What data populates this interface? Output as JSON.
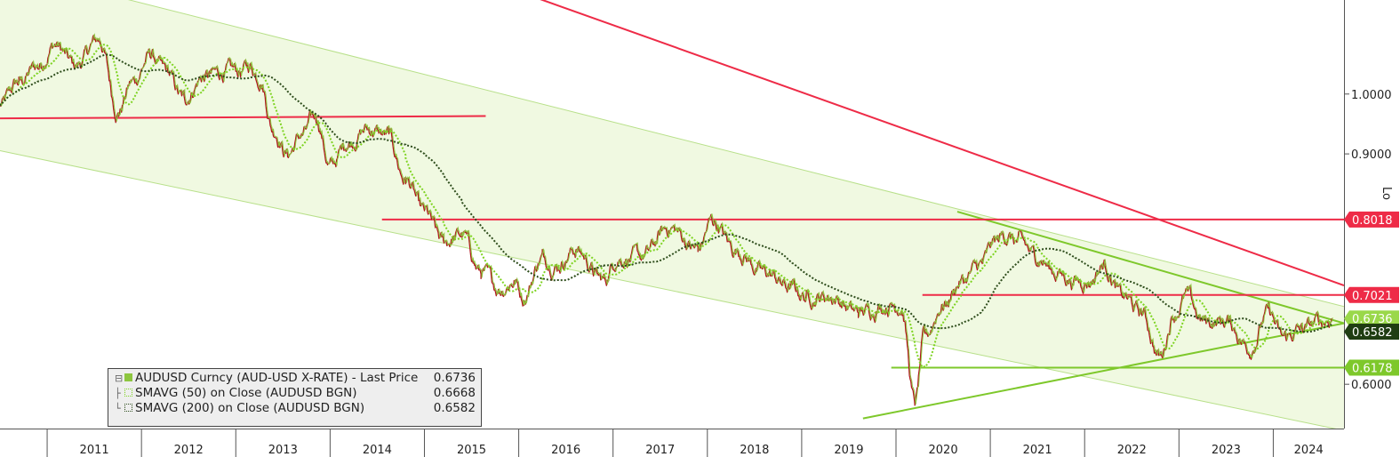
{
  "chart_data": {
    "type": "line",
    "title": "",
    "xlabel": "",
    "ylabel": "",
    "y_scale": "log",
    "x_range": [
      2010.5,
      2024.75
    ],
    "ylim": [
      0.555,
      1.18
    ],
    "y_ticks": [
      "1.0000",
      "0.9000",
      "0.6000"
    ],
    "x_tick_labels": [
      "2011",
      "2012",
      "2013",
      "2014",
      "2015",
      "2016",
      "2017",
      "2018",
      "2019",
      "2020",
      "2021",
      "2022",
      "2023",
      "2024"
    ],
    "axis_side_label": "Lo",
    "price_anchors": [
      [
        2010.5,
        0.98
      ],
      [
        2010.7,
        1.02
      ],
      [
        2010.9,
        1.05
      ],
      [
        2011.08,
        1.09
      ],
      [
        2011.3,
        1.05
      ],
      [
        2011.55,
        1.1
      ],
      [
        2011.75,
        0.97
      ],
      [
        2011.9,
        1.02
      ],
      [
        2012.1,
        1.07
      ],
      [
        2012.25,
        1.04
      ],
      [
        2012.45,
        0.99
      ],
      [
        2012.65,
        1.03
      ],
      [
        2012.9,
        1.04
      ],
      [
        2013.05,
        1.04
      ],
      [
        2013.15,
        1.05
      ],
      [
        2013.25,
        1.03
      ],
      [
        2013.4,
        0.94
      ],
      [
        2013.55,
        0.9
      ],
      [
        2013.7,
        0.93
      ],
      [
        2013.85,
        0.96
      ],
      [
        2014.0,
        0.88
      ],
      [
        2014.2,
        0.92
      ],
      [
        2014.4,
        0.94
      ],
      [
        2014.6,
        0.93
      ],
      [
        2014.8,
        0.86
      ],
      [
        2015.0,
        0.81
      ],
      [
        2015.2,
        0.77
      ],
      [
        2015.4,
        0.78
      ],
      [
        2015.6,
        0.73
      ],
      [
        2015.8,
        0.71
      ],
      [
        2015.95,
        0.72
      ],
      [
        2016.05,
        0.7
      ],
      [
        2016.25,
        0.75
      ],
      [
        2016.4,
        0.74
      ],
      [
        2016.6,
        0.76
      ],
      [
        2016.9,
        0.72
      ],
      [
        2017.05,
        0.75
      ],
      [
        2017.3,
        0.75
      ],
      [
        2017.6,
        0.79
      ],
      [
        2017.9,
        0.76
      ],
      [
        2018.05,
        0.8
      ],
      [
        2018.3,
        0.76
      ],
      [
        2018.6,
        0.73
      ],
      [
        2018.9,
        0.71
      ],
      [
        2019.05,
        0.7
      ],
      [
        2019.3,
        0.7
      ],
      [
        2019.6,
        0.68
      ],
      [
        2019.9,
        0.69
      ],
      [
        2020.05,
        0.69
      ],
      [
        2020.2,
        0.58
      ],
      [
        2020.3,
        0.65
      ],
      [
        2020.5,
        0.69
      ],
      [
        2020.7,
        0.72
      ],
      [
        2020.9,
        0.74
      ],
      [
        2021.05,
        0.77
      ],
      [
        2021.15,
        0.78
      ],
      [
        2021.3,
        0.77
      ],
      [
        2021.5,
        0.75
      ],
      [
        2021.7,
        0.73
      ],
      [
        2021.9,
        0.72
      ],
      [
        2022.05,
        0.72
      ],
      [
        2022.2,
        0.74
      ],
      [
        2022.4,
        0.7
      ],
      [
        2022.6,
        0.68
      ],
      [
        2022.8,
        0.63
      ],
      [
        2022.95,
        0.68
      ],
      [
        2023.08,
        0.7
      ],
      [
        2023.25,
        0.67
      ],
      [
        2023.5,
        0.67
      ],
      [
        2023.75,
        0.64
      ],
      [
        2023.95,
        0.68
      ],
      [
        2024.1,
        0.65
      ],
      [
        2024.3,
        0.66
      ],
      [
        2024.5,
        0.67
      ],
      [
        2024.62,
        0.6736
      ]
    ],
    "series": [
      {
        "name": "AUDUSD Curncy (AUD-USD X-RATE) - Last Price",
        "last": "0.6736",
        "color": "#8dc63f",
        "style": "price"
      },
      {
        "name": "SMAVG (50)  on Close (AUDUSD BGN)",
        "last": "0.6668",
        "color": "#7ed321",
        "style": "dotted",
        "window": 0.2
      },
      {
        "name": "SMAVG (200)  on Close (AUDUSD BGN)",
        "last": "0.6582",
        "color": "#2e4d1c",
        "style": "dotted",
        "window": 0.8
      }
    ],
    "channel": {
      "upper": [
        [
          2010.5,
          1.25
        ],
        [
          2024.75,
          0.688
        ]
      ],
      "lower": [
        [
          2010.5,
          0.905
        ],
        [
          2024.75,
          0.553
        ]
      ],
      "fill": "#f0f9e1",
      "edge": "#b8e08a"
    },
    "horizontal_levels": [
      {
        "value": 0.8018,
        "label": "0.8018",
        "color": "#ee2b47",
        "from": 2014.55
      },
      {
        "value": 0.7021,
        "label": "0.7021",
        "color": "#ee2b47",
        "from": 2020.28
      },
      {
        "value": 0.6178,
        "label": "0.6178",
        "color": "#7ec82b",
        "from": 2019.95
      }
    ],
    "trend_lines": [
      {
        "color": "#ee2b47",
        "p1": [
          2010.5,
          0.958
        ],
        "p2": [
          2015.65,
          0.962
        ]
      },
      {
        "color": "#ee2b47",
        "p1": [
          2015.55,
          1.23
        ],
        "p2": [
          2024.75,
          0.714
        ]
      },
      {
        "color": "#7ec82b",
        "p1": [
          2020.65,
          0.813
        ],
        "p2": [
          2024.75,
          0.668
        ]
      },
      {
        "color": "#7ec82b",
        "p1": [
          2019.65,
          0.565
        ],
        "p2": [
          2024.75,
          0.668
        ]
      }
    ],
    "badges": [
      {
        "label": "0.8018",
        "value": 0.8018,
        "bg": "#ee2b47",
        "fg": "#ffffff"
      },
      {
        "label": "0.7021",
        "value": 0.7021,
        "bg": "#ee2b47",
        "fg": "#ffffff"
      },
      {
        "label": "0.6736",
        "value": 0.6736,
        "bg": "#9ad84a",
        "fg": "#ffffff"
      },
      {
        "label": "0.6582",
        "value": 0.6582,
        "bg": "#1f3d12",
        "fg": "#ffffff"
      },
      {
        "label": "0.6178",
        "value": 0.6178,
        "bg": "#7ec82b",
        "fg": "#ffffff"
      }
    ]
  },
  "legend": {
    "items": [
      {
        "label": "AUDUSD Curncy (AUD-USD X-RATE) - Last Price",
        "value": "0.6736"
      },
      {
        "label": "SMAVG (50)  on Close (AUDUSD BGN)",
        "value": "0.6668"
      },
      {
        "label": "SMAVG (200)  on Close (AUDUSD BGN)",
        "value": "0.6582"
      }
    ]
  }
}
